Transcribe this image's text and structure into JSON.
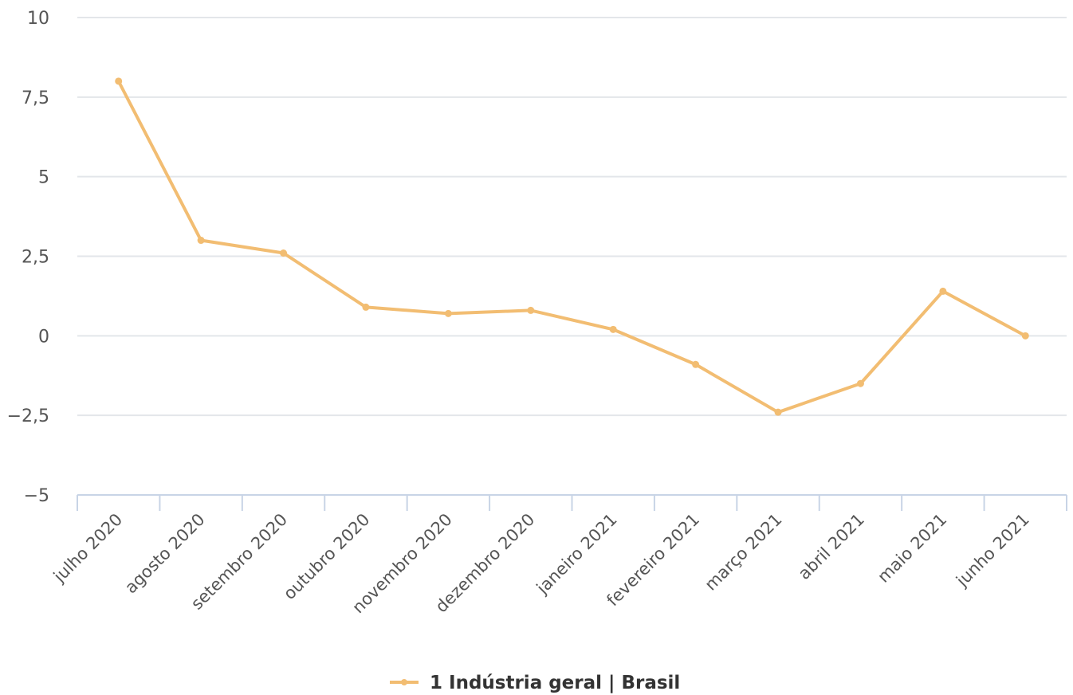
{
  "chart_data": {
    "type": "line",
    "categories": [
      "julho 2020",
      "agosto 2020",
      "setembro 2020",
      "outubro 2020",
      "novembro 2020",
      "dezembro 2020",
      "janeiro 2021",
      "fevereiro 2021",
      "março 2021",
      "abril 2021",
      "maio 2021",
      "junho 2021"
    ],
    "series": [
      {
        "name": "1 Indústria geral | Brasil",
        "values": [
          8.0,
          3.0,
          2.6,
          0.9,
          0.7,
          0.8,
          0.2,
          -0.9,
          -2.4,
          -1.5,
          1.4,
          0.0
        ],
        "color": "#f2bd72"
      }
    ],
    "yticks": [
      {
        "value": 10,
        "label": "10"
      },
      {
        "value": 7.5,
        "label": "7,5"
      },
      {
        "value": 5,
        "label": "5"
      },
      {
        "value": 2.5,
        "label": "2,5"
      },
      {
        "value": 0,
        "label": "0"
      },
      {
        "value": -2.5,
        "label": "−2,5"
      },
      {
        "value": -5,
        "label": "−5"
      }
    ],
    "ylim": [
      -5,
      10
    ],
    "title": "",
    "xlabel": "",
    "ylabel": "",
    "grid": true,
    "legend_position": "bottom-center"
  }
}
